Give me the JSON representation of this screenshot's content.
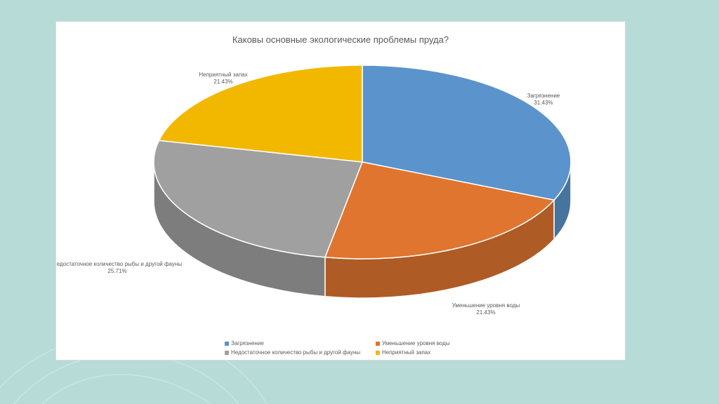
{
  "chart_data": {
    "type": "pie",
    "title": "Каковы основные экологические проблемы пруда?",
    "slices": [
      {
        "label": "Загрязнение",
        "value": 31.43,
        "percent_label": "31.43%",
        "color": "#5b93cc"
      },
      {
        "label": "Уменьшение уровня воды",
        "value": 21.43,
        "percent_label": "21.43%",
        "color": "#e0752f"
      },
      {
        "label": "Недостаточное количество рыбы и другой фауны",
        "value": 25.71,
        "percent_label": "25.71%",
        "color": "#a0a0a0"
      },
      {
        "label": "Неприятный запах",
        "value": 21.43,
        "percent_label": "21.43%",
        "color": "#f2b800"
      }
    ],
    "legend_position": "bottom",
    "three_d": true
  }
}
